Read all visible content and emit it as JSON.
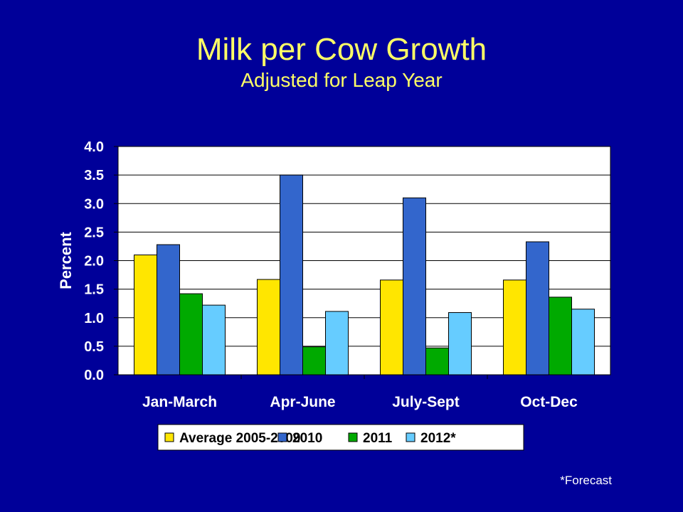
{
  "slide": {
    "title": "Milk per Cow Growth",
    "subtitle": "Adjusted for Leap Year",
    "footnote": "*Forecast"
  },
  "colors": {
    "background": "#000099",
    "title": "#FFFF66",
    "plot_background": "#FFFFFF",
    "text": "#FFFFFF"
  },
  "chart_data": {
    "type": "bar",
    "title": "",
    "xlabel": "",
    "ylabel": "Percent",
    "ylim": [
      0,
      4.0
    ],
    "yticks": [
      "0.0",
      "0.5",
      "1.0",
      "1.5",
      "2.0",
      "2.5",
      "3.0",
      "3.5",
      "4.0"
    ],
    "grid": true,
    "legend_position": "bottom",
    "categories": [
      "Jan-March",
      "Apr-June",
      "July-Sept",
      "Oct-Dec"
    ],
    "series": [
      {
        "name": "Average 2005-2009",
        "color": "#FFE600",
        "values": [
          2.1,
          1.67,
          1.66,
          1.66
        ]
      },
      {
        "name": "2010",
        "color": "#3366CC",
        "values": [
          2.28,
          3.5,
          3.1,
          2.33
        ]
      },
      {
        "name": "2011",
        "color": "#00AA00",
        "values": [
          1.42,
          0.49,
          0.47,
          1.36
        ]
      },
      {
        "name": "2012*",
        "color": "#66CCFF",
        "values": [
          1.22,
          1.11,
          1.09,
          1.15
        ]
      }
    ]
  }
}
